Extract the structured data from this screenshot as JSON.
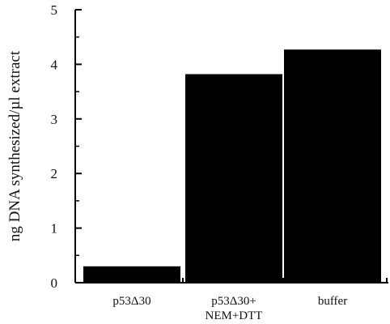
{
  "chart_data": {
    "type": "bar",
    "categories": [
      [
        "p53Δ30"
      ],
      [
        "p53Δ30+",
        "NEM+DTT"
      ],
      [
        "buffer"
      ]
    ],
    "values": [
      0.3,
      3.82,
      4.27
    ],
    "title": "",
    "xlabel": "",
    "ylabel": "ng DNA synthesized/µl extract",
    "ylim": [
      0,
      5
    ],
    "yticks": [
      0,
      1,
      2,
      3,
      4,
      5
    ],
    "grid": false,
    "legend": "none",
    "bar_color": "#000000"
  }
}
